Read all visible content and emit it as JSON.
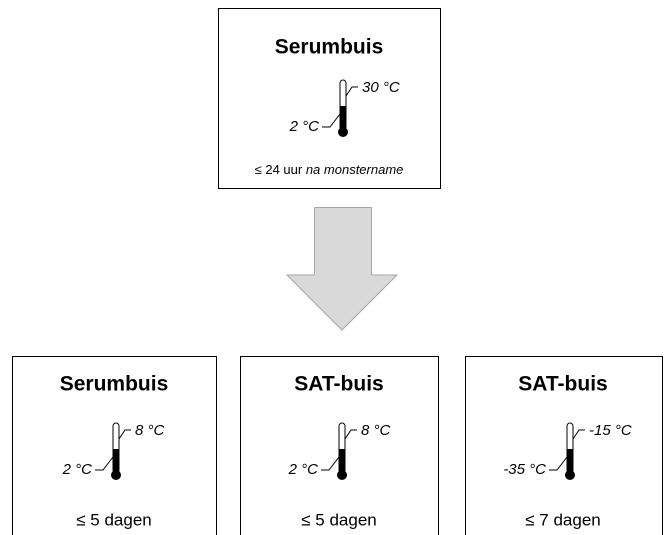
{
  "top": {
    "title": "Serumbuis",
    "max": "30 °C",
    "min": "2 °C",
    "condition": "≤ 24 uur",
    "condition_note": "na monstername"
  },
  "boxes": [
    {
      "title": "Serumbuis",
      "max": "8 °C",
      "min": "2 °C",
      "condition": "≤ 5 dagen"
    },
    {
      "title": "SAT-buis",
      "max": "8 °C",
      "min": "2 °C",
      "condition": "≤ 5 dagen"
    },
    {
      "title": "SAT-buis",
      "max": "-15 °C",
      "min": "-35 °C",
      "condition": "≤ 7 dagen"
    }
  ]
}
